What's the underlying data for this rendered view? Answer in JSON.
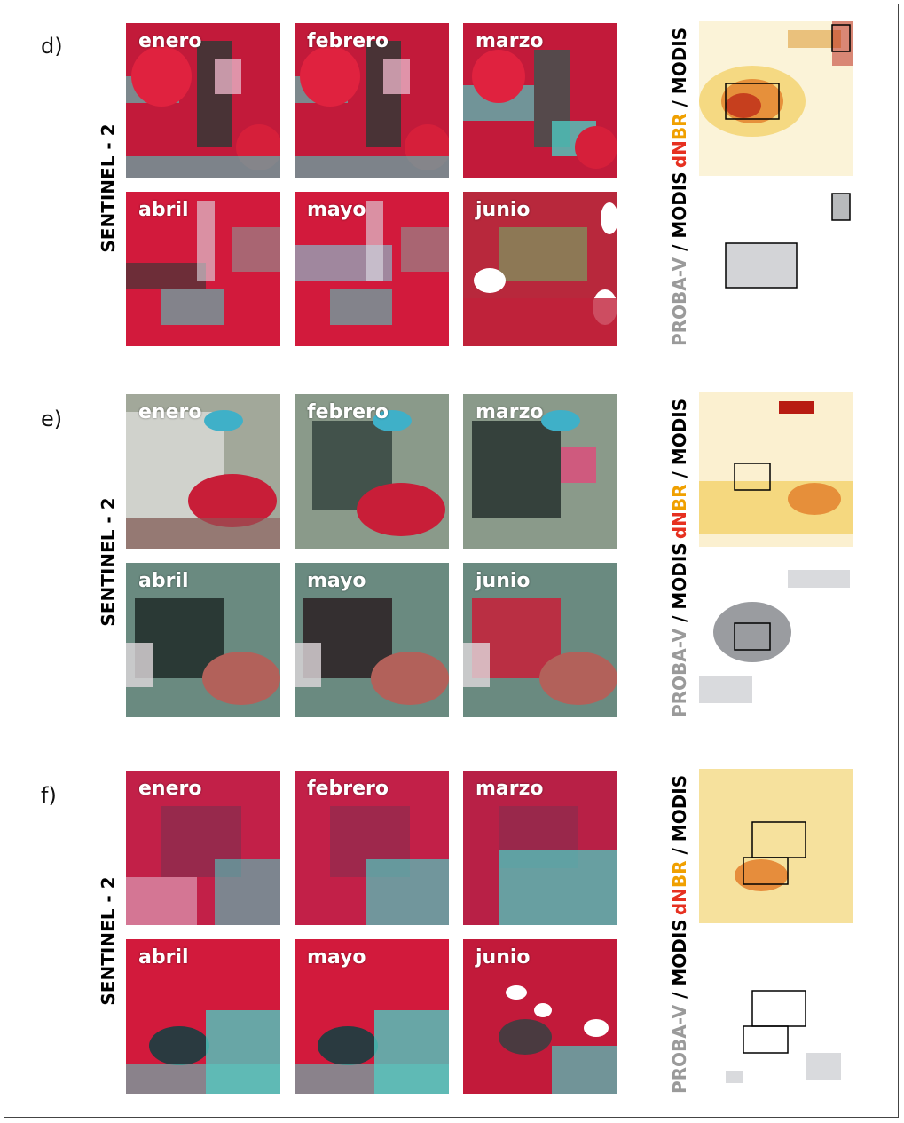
{
  "panels": [
    {
      "label": "d)",
      "side_label": "SENTINEL - 2",
      "months": [
        "enero",
        "febrero",
        "marzo",
        "abril",
        "mayo",
        "junio"
      ],
      "map_top": {
        "p1": "d",
        "p2": "N",
        "p3": "BR",
        "p4": " / MODIS"
      },
      "map_bottom": {
        "p1": "PROBA-V",
        "p2": " / MODIS"
      }
    },
    {
      "label": "e)",
      "side_label": "SENTINEL - 2",
      "months": [
        "enero",
        "febrero",
        "marzo",
        "abril",
        "mayo",
        "junio"
      ],
      "map_top": {
        "p1": "d",
        "p2": "N",
        "p3": "BR",
        "p4": " / MODIS"
      },
      "map_bottom": {
        "p1": "PROBA-V",
        "p2": " / MODIS"
      }
    },
    {
      "label": "f)",
      "side_label": "SENTINEL - 2",
      "months": [
        "enero",
        "febrero",
        "marzo",
        "abril",
        "mayo",
        "junio"
      ],
      "map_top": {
        "p1": "d",
        "p2": "N",
        "p3": "BR",
        "p4": " / MODIS"
      },
      "map_bottom": {
        "p1": "PROBA-V",
        "p2": " / MODIS"
      }
    }
  ],
  "colors": {
    "veg_red": "#d21a3c",
    "soil_cyan": "#4ec9c0",
    "dark_burn": "#2a3a36",
    "dnbr_yellow": "#f2c84a",
    "dnbr_orange": "#e0701c",
    "dnbr_red": "#b81c12",
    "proba_gray": "#9a9ca0"
  }
}
